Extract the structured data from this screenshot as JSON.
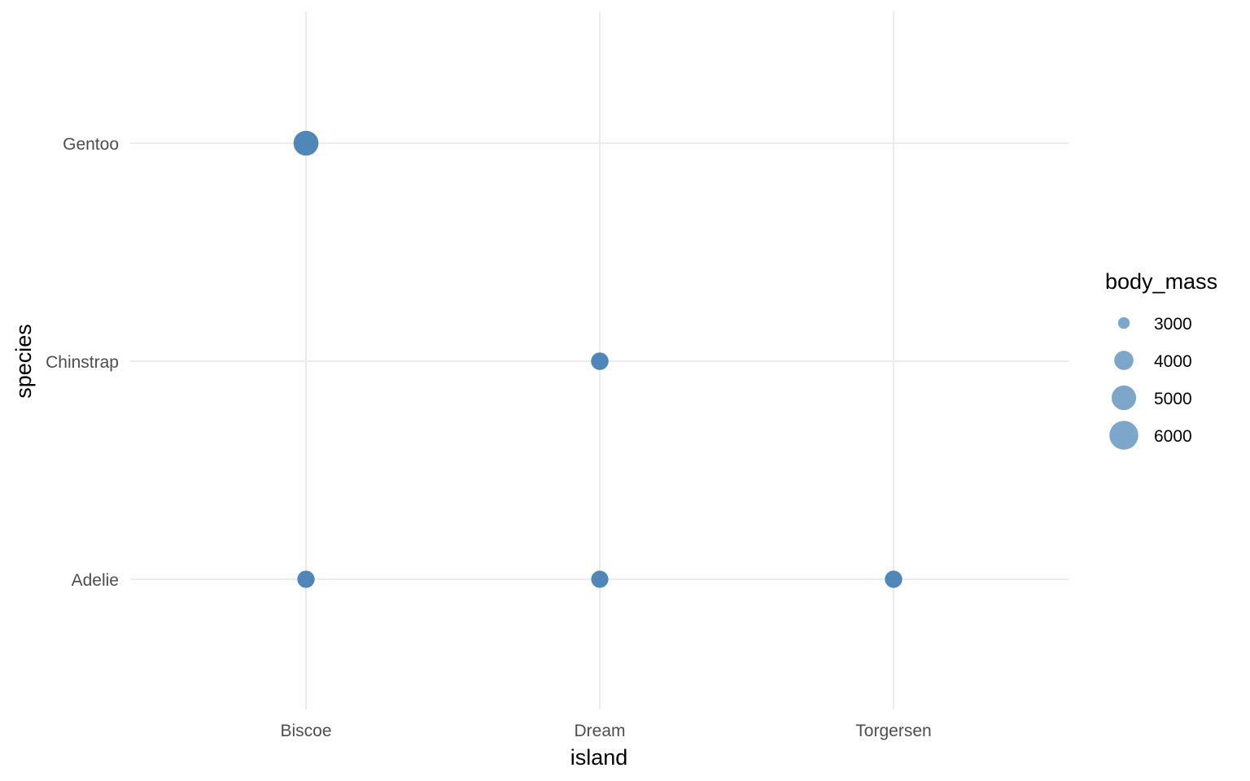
{
  "chart_data": {
    "type": "scatter",
    "title": "",
    "xlabel": "island",
    "ylabel": "species",
    "x_categories": [
      "Biscoe",
      "Dream",
      "Torgersen"
    ],
    "y_categories": [
      "Adelie",
      "Chinstrap",
      "Gentoo"
    ],
    "size_variable": "body_mass",
    "points": [
      {
        "x": "Biscoe",
        "y": "Gentoo",
        "body_mass": 5076
      },
      {
        "x": "Dream",
        "y": "Chinstrap",
        "body_mass": 3733
      },
      {
        "x": "Biscoe",
        "y": "Adelie",
        "body_mass": 3710
      },
      {
        "x": "Dream",
        "y": "Adelie",
        "body_mass": 3688
      },
      {
        "x": "Torgersen",
        "y": "Adelie",
        "body_mass": 3706
      }
    ],
    "point_color": "#4682b4",
    "grid": true,
    "legend": {
      "title": "body_mass",
      "position": "right",
      "breaks": [
        3000,
        4000,
        5000,
        6000
      ]
    }
  }
}
